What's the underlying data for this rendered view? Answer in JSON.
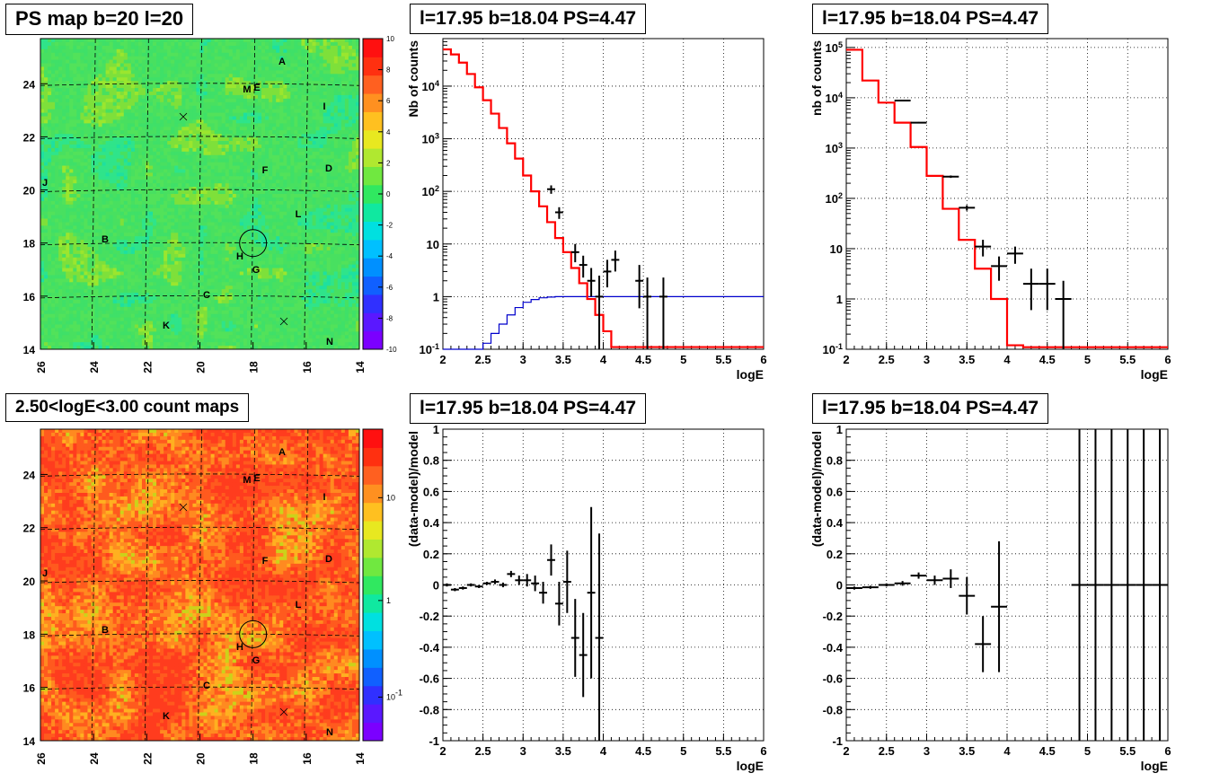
{
  "colors": {
    "data": "#000000",
    "model": "#ff0000",
    "exposure": "#0000cc",
    "grid": "#000000"
  },
  "chart_data": [
    {
      "id": "ps-map",
      "type": "heatmap",
      "title": "PS map b=20 l=20",
      "x_ticks": [
        "26",
        "24",
        "22",
        "20",
        "18",
        "16",
        "14"
      ],
      "y_ticks": [
        "14",
        "16",
        "18",
        "20",
        "22",
        "24"
      ],
      "z_ticks": [
        "-10",
        "-8",
        "-6",
        "-4",
        "-2",
        "0",
        "2",
        "4",
        "6",
        "8",
        "10"
      ],
      "z_range": [
        -10,
        10
      ],
      "palette": "green-dominated significance map",
      "labels": [
        "A",
        "M",
        "E",
        "I",
        "F",
        "D",
        "J",
        "L",
        "B",
        "H",
        "G",
        "C",
        "K",
        "N"
      ],
      "markers": "x",
      "circle_at_deg": [
        18,
        18
      ]
    },
    {
      "id": "spectrum-1",
      "type": "line",
      "title": "l=17.95 b=18.04 PS=4.47",
      "xlabel": "logE",
      "ylabel": "Nb of counts",
      "xlim": [
        2,
        6
      ],
      "ylim": [
        0.1,
        80000
      ],
      "log_y": true,
      "x_ticks": [
        "2",
        "2.5",
        "3",
        "3.5",
        "4",
        "4.5",
        "5",
        "5.5",
        "6"
      ],
      "y_ticks": [
        "10^-1",
        "1",
        "10",
        "10^2",
        "10^3",
        "10^4"
      ],
      "grid": true,
      "model_hist": {
        "bin_width": 0.1,
        "start": 2.0,
        "values": [
          50000,
          40000,
          28000,
          17000,
          9500,
          5400,
          3000,
          1600,
          820,
          420,
          200,
          100,
          52,
          26,
          13,
          7,
          3.5,
          1.8,
          0.9,
          0.45,
          0.22,
          0.11,
          0.11,
          0.11,
          0.11,
          0.11,
          0.11,
          0.11,
          0.11,
          0.11,
          0.11,
          0.11,
          0.11,
          0.11,
          0.11,
          0.11,
          0.11,
          0.11,
          0.11,
          0.11
        ]
      },
      "exposure_hist": {
        "bin_width": 0.1,
        "start": 2.0,
        "values": [
          0.1,
          0.1,
          0.1,
          0.1,
          0.1,
          0.13,
          0.2,
          0.3,
          0.45,
          0.62,
          0.78,
          0.88,
          0.95,
          0.98,
          1.0,
          1.0,
          1.0,
          1.0,
          1.0,
          1.0,
          1.0,
          1.0,
          1.0,
          1.0,
          1.0,
          1.0,
          1.0,
          1.0,
          1.0,
          1.0,
          1.0,
          1.0,
          1.0,
          1.0,
          1.0,
          1.0,
          1.0,
          1.0,
          1.0,
          1.0
        ]
      },
      "points": [
        {
          "x": 3.35,
          "y": 110,
          "lo": 90,
          "hi": 130
        },
        {
          "x": 3.45,
          "y": 40,
          "lo": 30,
          "hi": 50
        },
        {
          "x": 3.65,
          "y": 7,
          "lo": 4.5,
          "hi": 10
        },
        {
          "x": 3.75,
          "y": 4,
          "lo": 2.3,
          "hi": 6
        },
        {
          "x": 3.85,
          "y": 2,
          "lo": 1,
          "hi": 3.5
        },
        {
          "x": 3.95,
          "y": 1,
          "lo": 0.1,
          "hi": 2.5
        },
        {
          "x": 4.05,
          "y": 3,
          "lo": 1.5,
          "hi": 5
        },
        {
          "x": 4.15,
          "y": 5,
          "lo": 3,
          "hi": 7.5
        },
        {
          "x": 4.45,
          "y": 2,
          "lo": 0.6,
          "hi": 4
        },
        {
          "x": 4.55,
          "y": 1,
          "lo": 0.1,
          "hi": 2.3
        },
        {
          "x": 4.75,
          "y": 1,
          "lo": 0.1,
          "hi": 2.3
        }
      ]
    },
    {
      "id": "spectrum-2",
      "type": "line",
      "title": "l=17.95 b=18.04 PS=4.47",
      "xlabel": "logE",
      "ylabel": "nb of counts",
      "xlim": [
        2,
        6
      ],
      "ylim": [
        0.1,
        150000
      ],
      "log_y": true,
      "x_ticks": [
        "2",
        "2.5",
        "3",
        "3.5",
        "4",
        "4.5",
        "5",
        "5.5",
        "6"
      ],
      "y_ticks": [
        "10^-1",
        "1",
        "10",
        "10^2",
        "10^3",
        "10^4",
        "10^5"
      ],
      "grid": true,
      "model_hist": {
        "bin_width": 0.2,
        "start": 2.0,
        "values": [
          90000,
          22000,
          8000,
          3200,
          1050,
          280,
          62,
          15,
          4,
          1,
          0.12,
          0.11,
          0.11,
          0.11,
          0.11,
          0.11,
          0.11,
          0.11,
          0.11,
          0.11
        ]
      },
      "points": [
        {
          "x": 2.7,
          "y": 8800,
          "lo": 8600,
          "hi": 9000
        },
        {
          "x": 2.9,
          "y": 3200,
          "lo": 3100,
          "hi": 3300
        },
        {
          "x": 3.3,
          "y": 270,
          "lo": 255,
          "hi": 285
        },
        {
          "x": 3.5,
          "y": 65,
          "lo": 57,
          "hi": 73
        },
        {
          "x": 3.7,
          "y": 11,
          "lo": 7,
          "hi": 15
        },
        {
          "x": 3.9,
          "y": 4.5,
          "lo": 2.3,
          "hi": 7
        },
        {
          "x": 4.1,
          "y": 8,
          "lo": 5,
          "hi": 11
        },
        {
          "x": 4.3,
          "y": 2,
          "lo": 0.6,
          "hi": 4
        },
        {
          "x": 4.5,
          "y": 2,
          "lo": 0.6,
          "hi": 4
        },
        {
          "x": 4.7,
          "y": 1,
          "lo": 0.1,
          "hi": 2.3
        }
      ]
    },
    {
      "id": "count-map",
      "type": "heatmap",
      "title": "2.50<logE<3.00 count maps",
      "x_ticks": [
        "26",
        "24",
        "22",
        "20",
        "18",
        "16",
        "14"
      ],
      "y_ticks": [
        "14",
        "16",
        "18",
        "20",
        "22",
        "24"
      ],
      "z_ticks": [
        "10^-1",
        "1",
        "10"
      ],
      "log_z": true,
      "palette": "orange-dominated count map",
      "labels": [
        "A",
        "M",
        "E",
        "I",
        "F",
        "D",
        "J",
        "L",
        "B",
        "H",
        "G",
        "C",
        "K",
        "N"
      ],
      "markers": "x",
      "circle_at_deg": [
        18,
        18
      ]
    },
    {
      "id": "residual-1",
      "type": "scatter",
      "title": "l=17.95 b=18.04 PS=4.47",
      "xlabel": "logE",
      "ylabel": "(data-model)/model",
      "xlim": [
        2,
        6
      ],
      "ylim": [
        -1,
        1
      ],
      "x_ticks": [
        "2",
        "2.5",
        "3",
        "3.5",
        "4",
        "4.5",
        "5",
        "5.5",
        "6"
      ],
      "y_ticks": [
        "-1",
        "-0.8",
        "-0.6",
        "-0.4",
        "-0.2",
        "0",
        "0.2",
        "0.4",
        "0.6",
        "0.8",
        "1"
      ],
      "grid": true,
      "halfwidth": 0.05,
      "points": [
        {
          "x": 2.05,
          "y": 0.0,
          "err": 0.01
        },
        {
          "x": 2.15,
          "y": -0.03,
          "err": 0.01
        },
        {
          "x": 2.25,
          "y": -0.02,
          "err": 0.01
        },
        {
          "x": 2.35,
          "y": 0.0,
          "err": 0.01
        },
        {
          "x": 2.45,
          "y": -0.01,
          "err": 0.01
        },
        {
          "x": 2.55,
          "y": 0.01,
          "err": 0.01
        },
        {
          "x": 2.65,
          "y": 0.02,
          "err": 0.015
        },
        {
          "x": 2.75,
          "y": 0.0,
          "err": 0.015
        },
        {
          "x": 2.85,
          "y": 0.07,
          "err": 0.02
        },
        {
          "x": 2.95,
          "y": 0.03,
          "err": 0.03
        },
        {
          "x": 3.05,
          "y": 0.03,
          "err": 0.04
        },
        {
          "x": 3.15,
          "y": 0.01,
          "err": 0.05
        },
        {
          "x": 3.25,
          "y": -0.05,
          "err": 0.07
        },
        {
          "x": 3.35,
          "y": 0.16,
          "err": 0.1
        },
        {
          "x": 3.45,
          "y": -0.12,
          "err": 0.14
        },
        {
          "x": 3.55,
          "y": 0.02,
          "err": 0.2
        },
        {
          "x": 3.65,
          "y": -0.34,
          "err": 0.25
        },
        {
          "x": 3.75,
          "y": -0.45,
          "err": 0.27
        },
        {
          "x": 3.85,
          "y": -0.05,
          "err": 0.55
        },
        {
          "x": 3.95,
          "y": -0.34,
          "err": 0.67
        }
      ]
    },
    {
      "id": "residual-2",
      "type": "scatter",
      "title": "l=17.95 b=18.04 PS=4.47",
      "xlabel": "logE",
      "ylabel": "(data-model)/model",
      "xlim": [
        2,
        6
      ],
      "ylim": [
        -1,
        1
      ],
      "x_ticks": [
        "2",
        "2.5",
        "3",
        "3.5",
        "4",
        "4.5",
        "5",
        "5.5",
        "6"
      ],
      "y_ticks": [
        "-1",
        "-0.8",
        "-0.6",
        "-0.4",
        "-0.2",
        "0",
        "0.2",
        "0.4",
        "0.6",
        "0.8",
        "1"
      ],
      "grid": true,
      "halfwidth": 0.1,
      "points": [
        {
          "x": 2.1,
          "y": -0.02,
          "err": 0.01
        },
        {
          "x": 2.3,
          "y": -0.015,
          "err": 0.01
        },
        {
          "x": 2.5,
          "y": 0.0,
          "err": 0.01
        },
        {
          "x": 2.7,
          "y": 0.01,
          "err": 0.015
        },
        {
          "x": 2.9,
          "y": 0.06,
          "err": 0.02
        },
        {
          "x": 3.1,
          "y": 0.03,
          "err": 0.03
        },
        {
          "x": 3.3,
          "y": 0.04,
          "err": 0.06
        },
        {
          "x": 3.5,
          "y": -0.07,
          "err": 0.12
        },
        {
          "x": 3.7,
          "y": -0.38,
          "err": 0.18
        },
        {
          "x": 3.9,
          "y": -0.14,
          "err": 0.42
        },
        {
          "x": 4.9,
          "y": 0.0,
          "err": 5
        },
        {
          "x": 5.1,
          "y": 0.0,
          "err": 5
        },
        {
          "x": 5.3,
          "y": 0.0,
          "err": 5
        },
        {
          "x": 5.5,
          "y": 0.0,
          "err": 5
        },
        {
          "x": 5.7,
          "y": 0.0,
          "err": 5
        },
        {
          "x": 5.9,
          "y": 0.0,
          "err": 5
        }
      ]
    }
  ]
}
